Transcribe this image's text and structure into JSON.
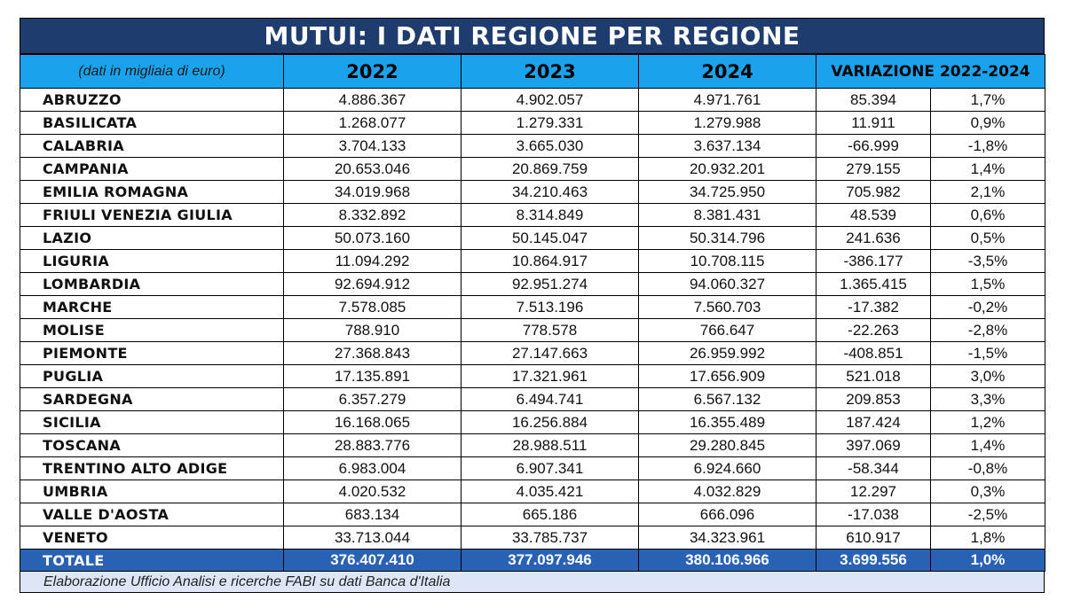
{
  "chart_data": {
    "type": "table",
    "title": "MUTUI: I DATI REGIONE PER REGIONE",
    "note": "(dati in migliaia di euro)",
    "columns": [
      "2022",
      "2023",
      "2024",
      "VARIAZIONE 2022-2024"
    ],
    "rows": [
      {
        "region": "ABRUZZO",
        "y2022": "4.886.367",
        "y2023": "4.902.057",
        "y2024": "4.971.761",
        "var_abs": "85.394",
        "var_pct": "1,7%"
      },
      {
        "region": "BASILICATA",
        "y2022": "1.268.077",
        "y2023": "1.279.331",
        "y2024": "1.279.988",
        "var_abs": "11.911",
        "var_pct": "0,9%"
      },
      {
        "region": "CALABRIA",
        "y2022": "3.704.133",
        "y2023": "3.665.030",
        "y2024": "3.637.134",
        "var_abs": "-66.999",
        "var_pct": "-1,8%"
      },
      {
        "region": "CAMPANIA",
        "y2022": "20.653.046",
        "y2023": "20.869.759",
        "y2024": "20.932.201",
        "var_abs": "279.155",
        "var_pct": "1,4%"
      },
      {
        "region": "EMILIA ROMAGNA",
        "y2022": "34.019.968",
        "y2023": "34.210.463",
        "y2024": "34.725.950",
        "var_abs": "705.982",
        "var_pct": "2,1%"
      },
      {
        "region": "FRIULI VENEZIA GIULIA",
        "y2022": "8.332.892",
        "y2023": "8.314.849",
        "y2024": "8.381.431",
        "var_abs": "48.539",
        "var_pct": "0,6%"
      },
      {
        "region": "LAZIO",
        "y2022": "50.073.160",
        "y2023": "50.145.047",
        "y2024": "50.314.796",
        "var_abs": "241.636",
        "var_pct": "0,5%"
      },
      {
        "region": "LIGURIA",
        "y2022": "11.094.292",
        "y2023": "10.864.917",
        "y2024": "10.708.115",
        "var_abs": "-386.177",
        "var_pct": "-3,5%"
      },
      {
        "region": "LOMBARDIA",
        "y2022": "92.694.912",
        "y2023": "92.951.274",
        "y2024": "94.060.327",
        "var_abs": "1.365.415",
        "var_pct": "1,5%"
      },
      {
        "region": "MARCHE",
        "y2022": "7.578.085",
        "y2023": "7.513.196",
        "y2024": "7.560.703",
        "var_abs": "-17.382",
        "var_pct": "-0,2%"
      },
      {
        "region": "MOLISE",
        "y2022": "788.910",
        "y2023": "778.578",
        "y2024": "766.647",
        "var_abs": "-22.263",
        "var_pct": "-2,8%"
      },
      {
        "region": "PIEMONTE",
        "y2022": "27.368.843",
        "y2023": "27.147.663",
        "y2024": "26.959.992",
        "var_abs": "-408.851",
        "var_pct": "-1,5%"
      },
      {
        "region": "PUGLIA",
        "y2022": "17.135.891",
        "y2023": "17.321.961",
        "y2024": "17.656.909",
        "var_abs": "521.018",
        "var_pct": "3,0%"
      },
      {
        "region": "SARDEGNA",
        "y2022": "6.357.279",
        "y2023": "6.494.741",
        "y2024": "6.567.132",
        "var_abs": "209.853",
        "var_pct": "3,3%"
      },
      {
        "region": "SICILIA",
        "y2022": "16.168.065",
        "y2023": "16.256.884",
        "y2024": "16.355.489",
        "var_abs": "187.424",
        "var_pct": "1,2%"
      },
      {
        "region": "TOSCANA",
        "y2022": "28.883.776",
        "y2023": "28.988.511",
        "y2024": "29.280.845",
        "var_abs": "397.069",
        "var_pct": "1,4%"
      },
      {
        "region": "TRENTINO ALTO ADIGE",
        "y2022": "6.983.004",
        "y2023": "6.907.341",
        "y2024": "6.924.660",
        "var_abs": "-58.344",
        "var_pct": "-0,8%"
      },
      {
        "region": "UMBRIA",
        "y2022": "4.020.532",
        "y2023": "4.035.421",
        "y2024": "4.032.829",
        "var_abs": "12.297",
        "var_pct": "0,3%"
      },
      {
        "region": "VALLE D'AOSTA",
        "y2022": "683.134",
        "y2023": "665.186",
        "y2024": "666.096",
        "var_abs": "-17.038",
        "var_pct": "-2,5%"
      },
      {
        "region": "VENETO",
        "y2022": "33.713.044",
        "y2023": "33.785.737",
        "y2024": "34.323.961",
        "var_abs": "610.917",
        "var_pct": "1,8%"
      }
    ],
    "total": {
      "region": "TOTALE",
      "y2022": "376.407.410",
      "y2023": "377.097.946",
      "y2024": "380.106.966",
      "var_abs": "3.699.556",
      "var_pct": "1,0%"
    },
    "footer": "Elaborazione Ufficio Analisi e ricerche FABI su dati Banca d'Italia",
    "colors": {
      "title_bg": "#1f3c6e",
      "header_bg": "#1aa3ec",
      "total_bg": "#2962b5",
      "footer_bg": "#dce6f7"
    }
  }
}
